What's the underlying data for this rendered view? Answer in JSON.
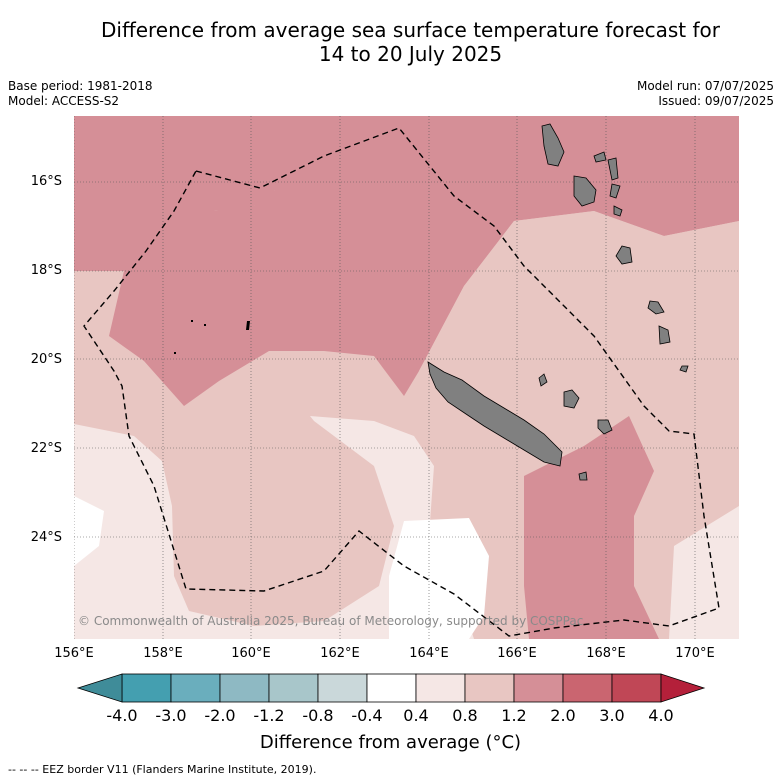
{
  "title_line1": "Difference from average sea surface temperature forecast for",
  "title_line2": "14 to 20 July 2025",
  "base_period": "Base period: 1981-2018",
  "model": "Model: ACCESS-S2",
  "model_run": "Model run: 07/07/2025",
  "issued": "Issued: 09/07/2025",
  "copyright": "© Commonwealth of Australia 2025, Bureau of Meteorology, supported by COSPPac",
  "lat_labels": [
    "16°S",
    "18°S",
    "20°S",
    "22°S",
    "24°S"
  ],
  "lon_labels": [
    "156°E",
    "158°E",
    "160°E",
    "162°E",
    "164°E",
    "166°E",
    "168°E",
    "170°E"
  ],
  "colorbar": {
    "ticks": [
      "-4.0",
      "-3.0",
      "-2.0",
      "-1.2",
      "-0.8",
      "-0.4",
      "0.4",
      "0.8",
      "1.2",
      "2.0",
      "3.0",
      "4.0"
    ],
    "colors": [
      "#449fb0",
      "#6aaebd",
      "#8eb9c3",
      "#a8c6ca",
      "#cad8da",
      "#ffffff",
      "#f5e7e5",
      "#e8c6c2",
      "#d58f97",
      "#ca6570",
      "#c04756"
    ],
    "extend_low_color": "#3f8c99",
    "extend_high_color": "#b4203a",
    "title": "Difference from average (°C)"
  },
  "footnote": "-- -- -- EEZ border V11 (Flanders Marine Institute, 2019).",
  "map_colors": {
    "band_0_4_0_8": "#f5e7e5",
    "band_0_8_1_2": "#e8c6c2",
    "band_1_2_2_0": "#d58f97",
    "neutral": "#ffffff",
    "land": "#808080"
  }
}
